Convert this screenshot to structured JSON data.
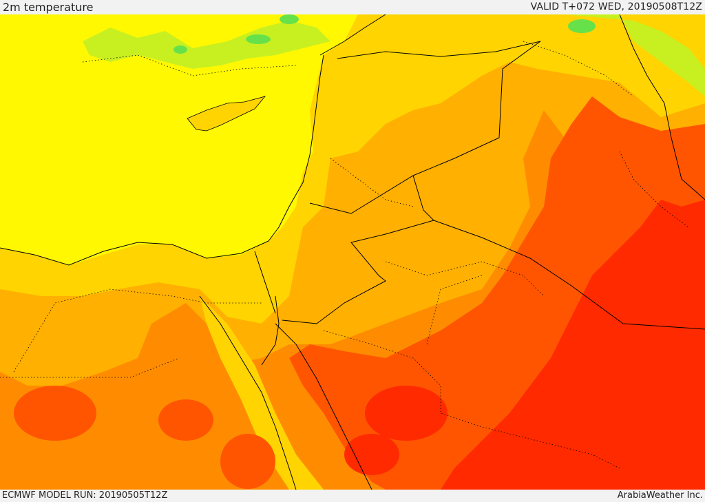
{
  "header": {
    "title": "2m temperature",
    "valid": "VALID T+072 WED, 20190508T12Z"
  },
  "footer": {
    "model_run": "ECMWF MODEL RUN: 20190505T12Z",
    "credit": "ArabiaWeather Inc."
  },
  "map": {
    "field": "2m temperature",
    "palette": {
      "green": "#66e14a",
      "yellow_green": "#c8f020",
      "yellow": "#fff800",
      "gold": "#ffd400",
      "orange_light": "#ffb000",
      "orange": "#ff8c00",
      "orange_red": "#ff5500",
      "red": "#ff2a00",
      "border": "#000000"
    }
  }
}
